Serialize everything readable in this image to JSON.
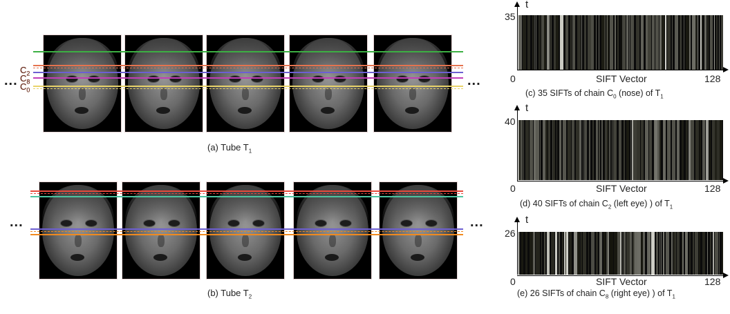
{
  "tube1": {
    "caption_prefix": "(a) Tube T",
    "caption_sub": "1",
    "ellipsis_left": "...",
    "ellipsis_right": "...",
    "chain_labels": [
      {
        "text": "C",
        "sub": "2"
      },
      {
        "text": "C",
        "sub": "8"
      },
      {
        "text": "C",
        "sub": "0"
      }
    ],
    "frame_count": 5,
    "line_colors": [
      "#3cb043",
      "#e5734f",
      "#6d5fd2",
      "#c23db8",
      "#e8d36a"
    ]
  },
  "tube2": {
    "caption_prefix": "(b) Tube T",
    "caption_sub": "2",
    "ellipsis_left": "...",
    "ellipsis_right": "...",
    "frame_count": 5,
    "line_colors": [
      "#e84a3c",
      "#4cc5a0",
      "#6d5fd2",
      "#f08a1f"
    ]
  },
  "sift_panels": [
    {
      "t_label": "t",
      "y_max": "35",
      "x_zero": "0",
      "x_max": "128",
      "x_title": "SIFT Vector",
      "caption_before": "(c) 35 SIFTs of chain C",
      "caption_sub": "0",
      "caption_after": " (nose) of  T",
      "caption_sub2": "1"
    },
    {
      "t_label": "t",
      "y_max": "40",
      "x_zero": "0",
      "x_max": "128",
      "x_title": "SIFT Vector",
      "caption_before": "(d) 40 SIFTs of chain C",
      "caption_sub": "2",
      "caption_after": " (left eye) ) of  T",
      "caption_sub2": "1"
    },
    {
      "t_label": "t",
      "y_max": "26",
      "x_zero": "0",
      "x_max": "128",
      "x_title": "SIFT Vector",
      "caption_before": "(e) 26 SIFTs of chain C",
      "caption_sub": "8",
      "caption_after": " (right eye) ) of  T",
      "caption_sub2": "1"
    }
  ]
}
